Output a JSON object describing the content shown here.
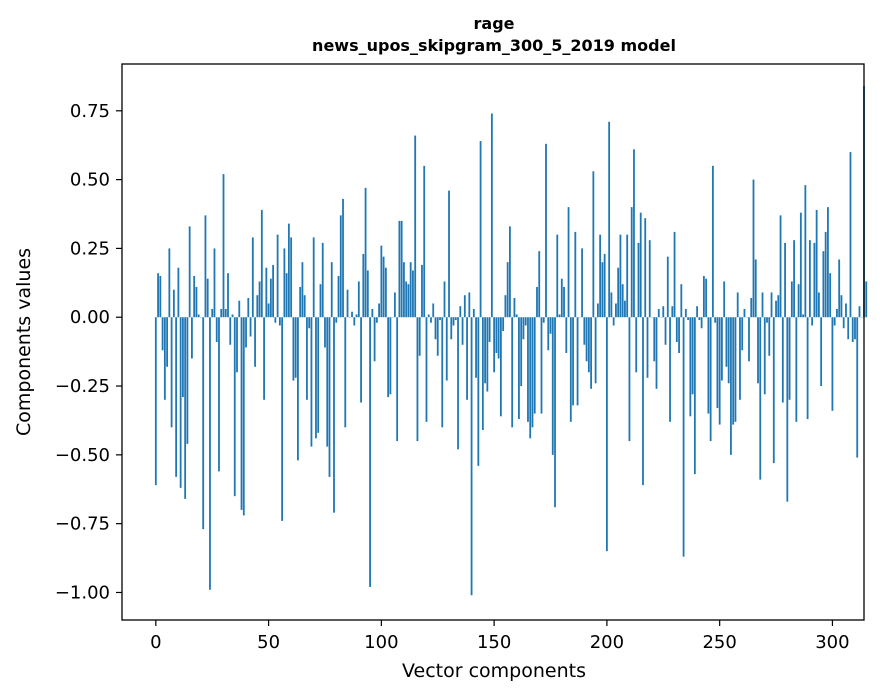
{
  "chart_data": {
    "type": "bar",
    "title": "rage",
    "subtitle": "news_upos_skipgram_300_5_2019 model",
    "xlabel": "Vector components",
    "ylabel": "Components values",
    "xlim": [
      -15,
      314
    ],
    "ylim": [
      -1.1,
      0.92
    ],
    "xticks": [
      0,
      50,
      100,
      150,
      200,
      250,
      300
    ],
    "yticks": [
      0.75,
      0.5,
      0.25,
      0.0,
      -0.25,
      -0.5,
      -0.75,
      -1.0
    ],
    "xtick_labels": [
      "0",
      "50",
      "100",
      "150",
      "200",
      "250",
      "300"
    ],
    "ytick_labels": [
      "0.75",
      "0.50",
      "0.25",
      "0.00",
      "−0.25",
      "−0.50",
      "−0.75",
      "−1.00"
    ],
    "bar_color": "#1f77b4",
    "values": [
      -0.61,
      0.16,
      0.15,
      -0.12,
      -0.3,
      -0.18,
      0.25,
      -0.4,
      0.1,
      -0.58,
      0.18,
      -0.62,
      -0.29,
      -0.66,
      -0.46,
      0.33,
      -0.15,
      0.15,
      0.11,
      0.01,
      0.0,
      -0.77,
      0.37,
      0.14,
      -0.99,
      0.03,
      0.25,
      -0.09,
      -0.56,
      0.03,
      0.52,
      0.03,
      0.16,
      -0.1,
      0.01,
      -0.65,
      -0.2,
      0.06,
      -0.7,
      -0.72,
      -0.11,
      0.07,
      -0.07,
      0.29,
      -0.18,
      0.08,
      0.13,
      0.39,
      -0.3,
      0.18,
      0.05,
      0.14,
      0.19,
      -0.02,
      0.3,
      -0.03,
      -0.74,
      0.25,
      0.16,
      0.34,
      0.29,
      -0.23,
      -0.22,
      -0.52,
      0.11,
      0.2,
      0.08,
      -0.3,
      -0.04,
      -0.47,
      0.29,
      -0.44,
      -0.42,
      0.12,
      0.27,
      -0.11,
      -0.47,
      -0.58,
      0.2,
      -0.71,
      -0.02,
      0.15,
      0.37,
      0.43,
      -0.4,
      0.1,
      0.0,
      0.02,
      -0.03,
      0.01,
      0.13,
      -0.31,
      0.23,
      0.47,
      0.17,
      -0.98,
      0.03,
      -0.16,
      -0.02,
      0.05,
      0.26,
      0.22,
      0.18,
      -0.29,
      -0.28,
      0.0,
      0.09,
      -0.45,
      0.35,
      0.35,
      0.2,
      0.13,
      0.12,
      0.2,
      0.17,
      0.66,
      -0.45,
      -0.14,
      0.19,
      0.55,
      -0.38,
      0.01,
      -0.02,
      0.05,
      -0.08,
      -0.14,
      -0.01,
      -0.4,
      0.13,
      -0.23,
      0.46,
      -0.08,
      -0.03,
      -0.01,
      -0.48,
      0.04,
      -0.1,
      0.08,
      -0.3,
      0.09,
      -1.01,
      0.03,
      -0.22,
      -0.54,
      0.64,
      -0.41,
      -0.24,
      -0.27,
      -0.09,
      0.74,
      -0.2,
      -0.13,
      -0.15,
      -0.36,
      -0.05,
      0.08,
      0.2,
      0.33,
      -0.4,
      0.07,
      0.01,
      -0.37,
      -0.25,
      -0.08,
      -0.03,
      -0.38,
      -0.44,
      -0.4,
      -0.35,
      0.11,
      0.24,
      -0.35,
      -0.02,
      0.63,
      -0.12,
      -0.06,
      -0.5,
      -0.69,
      0.3,
      0.01,
      0.14,
      0.11,
      -0.13,
      0.4,
      -0.38,
      -0.32,
      0.31,
      -0.32,
      0.0,
      0.25,
      -0.1,
      -0.16,
      -0.2,
      -0.26,
      0.53,
      -0.24,
      0.05,
      0.3,
      0.2,
      0.23,
      -0.85,
      0.71,
      0.09,
      -0.03,
      0.05,
      0.18,
      0.3,
      0.12,
      0.06,
      0.3,
      -0.45,
      0.4,
      0.61,
      -0.2,
      0.27,
      0.38,
      -0.61,
      0.36,
      -0.22,
      0.28,
      0.0,
      -0.16,
      -0.26,
      0.03,
      0.0,
      0.04,
      -0.1,
      0.22,
      -0.38,
      0.04,
      0.31,
      -0.09,
      -0.13,
      0.12,
      -0.87,
      0.03,
      -0.01,
      -0.36,
      -0.28,
      -0.57,
      0.04,
      -0.01,
      -0.04,
      0.15,
      0.14,
      -0.35,
      -0.45,
      0.55,
      -0.02,
      -0.33,
      -0.39,
      -0.23,
      0.13,
      -0.18,
      -0.24,
      -0.5,
      -0.39,
      -0.38,
      0.09,
      -0.3,
      -0.12,
      0.03,
      0.0,
      -0.16,
      0.07,
      0.5,
      0.21,
      -0.24,
      -0.59,
      0.09,
      -0.28,
      -0.02,
      -0.14,
      0.09,
      -0.53,
      0.06,
      0.08,
      0.37,
      -0.31,
      0.27,
      -0.67,
      -0.3,
      0.13,
      0.28,
      -0.38,
      0.12,
      0.38,
      0.01,
      0.48,
      -0.37,
      0.28,
      -0.03,
      0.27,
      0.39,
      0.09,
      -0.25,
      0.24,
      0.31,
      0.4,
      0.16,
      -0.34,
      -0.03,
      0.03,
      0.21,
      0.08,
      -0.04,
      0.05,
      -0.08,
      0.6,
      -0.09,
      -0.08,
      -0.51,
      0.04,
      0.0,
      0.84,
      0.13
    ]
  }
}
